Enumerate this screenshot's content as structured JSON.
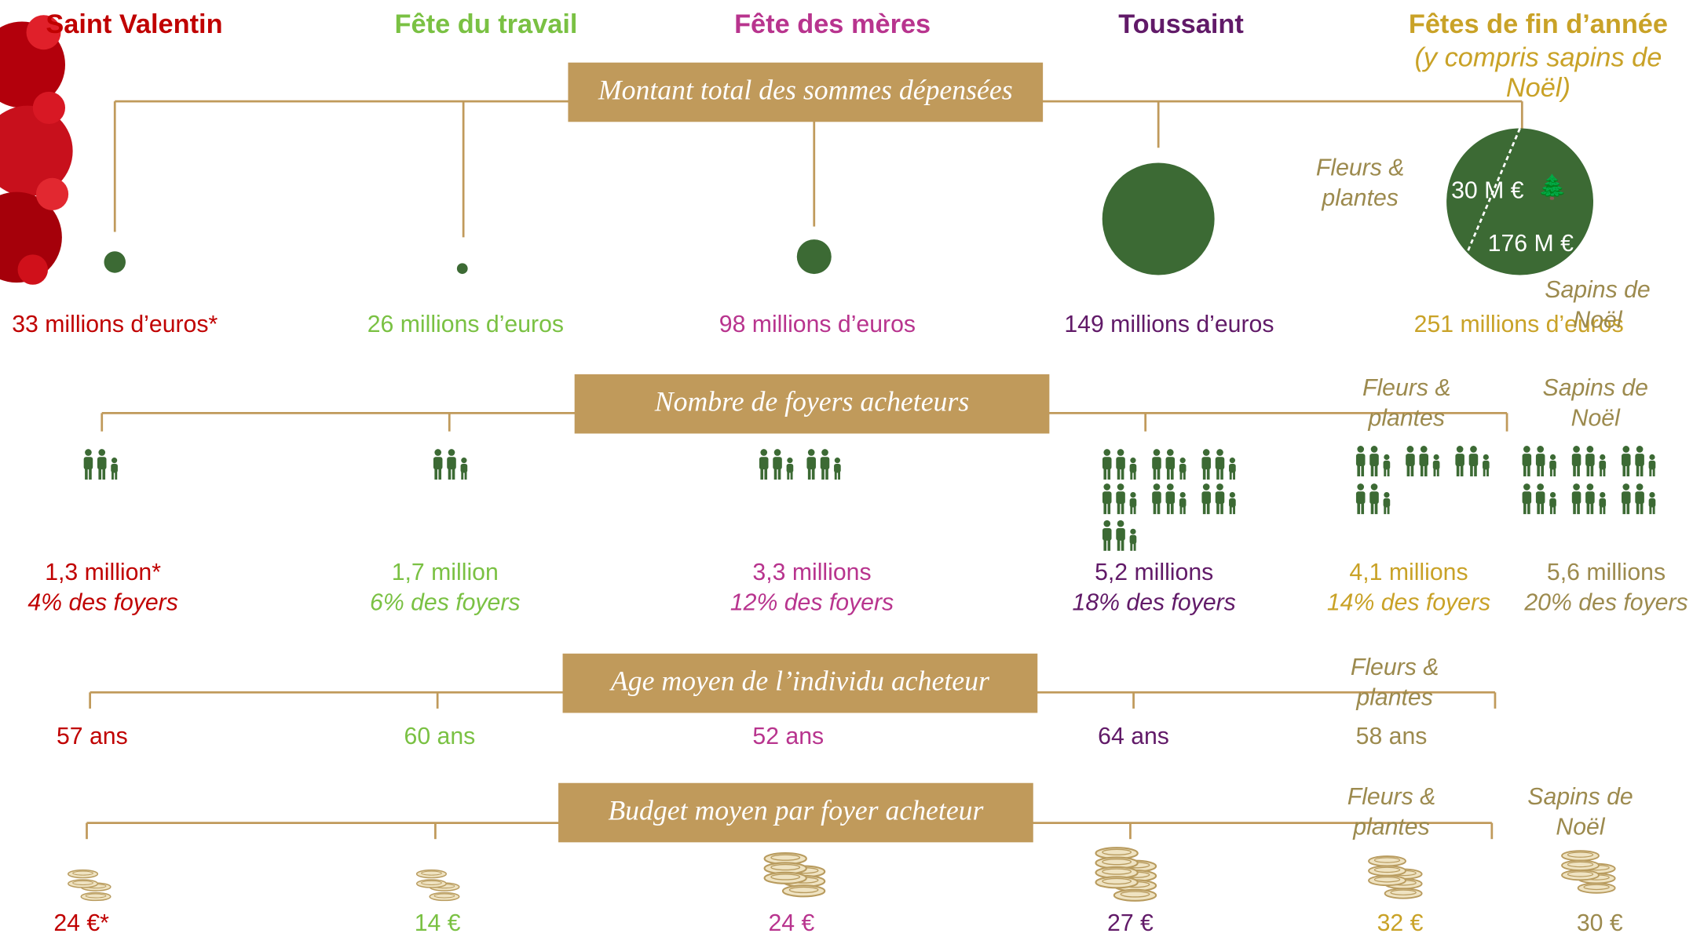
{
  "holidays": [
    "Saint Valentin",
    "Fête du travail",
    "Fête des mères",
    "Toussaint",
    "Fêtes de fin d’année"
  ],
  "holiday_note": [
    "(y compris sapins de",
    "Noël)"
  ],
  "sections": [
    {
      "title": "Montant total des sommes dépensées",
      "values": [
        "33 millions d’euros*",
        "26 millions d’euros",
        "98 millions d’euros",
        "149 millions d’euros",
        "251 millions d’euros"
      ],
      "split_labels": [
        [
          "Fleurs &",
          "plantes"
        ],
        [
          "Sapins de",
          "Noël"
        ]
      ],
      "split_values": [
        "30 M €",
        "176 M €"
      ]
    },
    {
      "title": "Nombre de foyers acheteurs",
      "values": [
        "1,3 million*",
        "1,7 million",
        "3,3 millions",
        "5,2 millions",
        "4,1 millions",
        "5,6 millions"
      ],
      "shares": [
        "4% des foyers",
        "6% des foyers",
        "12% des foyers",
        "18% des foyers",
        "14% des foyers",
        "20% des foyers"
      ],
      "split_labels": [
        [
          "Fleurs &",
          "plantes"
        ],
        [
          "Sapins de",
          "Noël"
        ]
      ]
    },
    {
      "title": "Age moyen de l’individu acheteur",
      "values": [
        "57 ans",
        "60 ans",
        "52 ans",
        "64 ans",
        "58 ans"
      ],
      "split_labels": [
        [
          "Fleurs &",
          "plantes"
        ]
      ]
    },
    {
      "title": "Budget moyen par foyer acheteur",
      "values": [
        "24 €*",
        "14 €",
        "24 €",
        "27 €",
        "32 €",
        "30 €"
      ],
      "split_labels": [
        [
          "Fleurs &",
          "plantes"
        ],
        [
          "Sapins de",
          "Noël"
        ]
      ]
    }
  ]
}
